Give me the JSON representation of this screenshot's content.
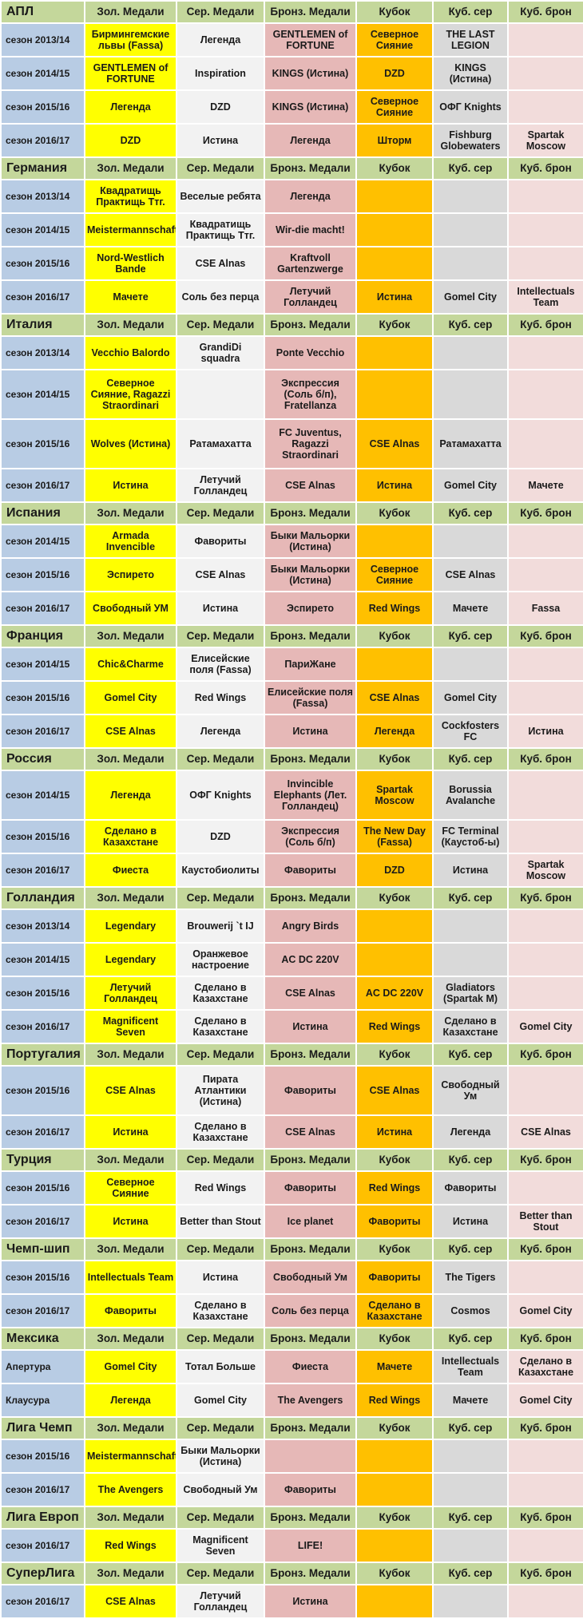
{
  "columns": [
    "Зол. Медали",
    "Сер. Медали",
    "Бронз. Медали",
    "Кубок",
    "Куб. сер",
    "Куб. брон"
  ],
  "sections": [
    {
      "name": "АПЛ",
      "rows": [
        {
          "h": 40,
          "season": "сезон 2013/14",
          "cells": [
            "Бирмингемские львы (Fassa)",
            "Легенда",
            "GENTLEMEN of FORTUNE",
            "Северное Сияние",
            "THE LAST LEGION",
            ""
          ]
        },
        {
          "h": 40,
          "season": "сезон 2014/15",
          "cells": [
            "GENTLEMEN of FORTUNE",
            "Inspiration",
            "KINGS (Истина)",
            "DZD",
            "KINGS (Истина)",
            ""
          ]
        },
        {
          "h": 40,
          "season": "сезон 2015/16",
          "cells": [
            "Легенда",
            "DZD",
            "KINGS (Истина)",
            "Северное Сияние",
            "ОФГ Knights",
            ""
          ]
        },
        {
          "h": 40,
          "season": "сезон 2016/17",
          "cells": [
            "DZD",
            "Истина",
            "Легенда",
            "Шторм",
            "Fishburg Globewaters",
            "Spartak Moscow"
          ]
        }
      ]
    },
    {
      "name": "Германия",
      "rows": [
        {
          "h": 40,
          "season": "сезон 2013/14",
          "cells": [
            "Квадратищь Практищь Ттг.",
            "Веселые ребята",
            "Легенда",
            "",
            "",
            ""
          ]
        },
        {
          "h": 40,
          "season": "сезон 2014/15",
          "cells": [
            "Meistermannschaft",
            "Квадратищь Практищь Ттг.",
            "Wir-die macht!",
            "",
            "",
            ""
          ]
        },
        {
          "h": 40,
          "season": "сезон 2015/16",
          "cells": [
            "Nord-Westlich Bande",
            "CSE Alnas",
            "Kraftvoll Gartenzwerge",
            "",
            "",
            ""
          ]
        },
        {
          "h": 40,
          "season": "сезон 2016/17",
          "cells": [
            "Мачете",
            "Соль без перца",
            "Летучий Голландец",
            "Истина",
            "Gomel City",
            "Intellectuals Team"
          ]
        }
      ]
    },
    {
      "name": "Италия",
      "rows": [
        {
          "h": 40,
          "season": "сезон 2013/14",
          "cells": [
            "Vecchio Balordo",
            "GrandiDi squadra",
            "Ponte Vecchio",
            "",
            "",
            ""
          ]
        },
        {
          "h": 60,
          "season": "сезон 2014/15",
          "cells": [
            "Северное Сияние, Ragazzi Straordinari",
            "",
            "Экспрессия (Соль б/п), Fratellanza",
            "",
            "",
            ""
          ]
        },
        {
          "h": 60,
          "season": "сезон 2015/16",
          "cells": [
            "Wolves (Истина)",
            "Ратамахатта",
            "FC Juventus, Ragazzi Straordinari",
            "CSE Alnas",
            "Ратамахатта",
            ""
          ]
        },
        {
          "h": 40,
          "season": "сезон 2016/17",
          "cells": [
            "Истина",
            "Летучий Голландец",
            "CSE Alnas",
            "Истина",
            "Gomel City",
            "Мачете"
          ]
        }
      ]
    },
    {
      "name": "Испания",
      "rows": [
        {
          "h": 40,
          "season": "сезон 2014/15",
          "cells": [
            "Armada Invencible",
            "Фавориты",
            "Быки Мальорки (Истина)",
            "",
            "",
            ""
          ]
        },
        {
          "h": 40,
          "season": "сезон 2015/16",
          "cells": [
            "Эспирето",
            "CSE Alnas",
            "Быки Мальорки (Истина)",
            "Северное Сияние",
            "CSE Alnas",
            ""
          ]
        },
        {
          "h": 40,
          "season": "сезон 2016/17",
          "cells": [
            "Свободный УМ",
            "Истина",
            "Эспирето",
            "Red Wings",
            "Мачете",
            "Fassa"
          ]
        }
      ]
    },
    {
      "name": "Франция",
      "rows": [
        {
          "h": 40,
          "season": "сезон 2014/15",
          "cells": [
            "Chic&Charme",
            "Елисейские поля (Fassa)",
            "ПариЖане",
            "",
            "",
            ""
          ]
        },
        {
          "h": 40,
          "season": "сезон 2015/16",
          "cells": [
            "Gomel City",
            "Red Wings",
            "Елисейские поля (Fassa)",
            "CSE Alnas",
            "Gomel City",
            ""
          ]
        },
        {
          "h": 40,
          "season": "сезон 2016/17",
          "cells": [
            "CSE Alnas",
            "Легенда",
            "Истина",
            "Легенда",
            "Cockfosters FC",
            "Истина"
          ]
        }
      ]
    },
    {
      "name": "Россия",
      "rows": [
        {
          "h": 60,
          "season": "сезон 2014/15",
          "cells": [
            "Легенда",
            "ОФГ Knights",
            "Invincible Elephants (Лет. Голландец)",
            "Spartak Moscow",
            "Borussia Avalanche",
            ""
          ]
        },
        {
          "h": 40,
          "season": "сезон 2015/16",
          "cells": [
            "Сделано в Казахстане",
            "DZD",
            "Экспрессия (Соль б/п)",
            "The New Day (Fassa)",
            "FC Terminal (Каустоб-ы)",
            ""
          ]
        },
        {
          "h": 40,
          "season": "сезон 2016/17",
          "cells": [
            "Фиеста",
            "Каустобиолиты",
            "Фавориты",
            "DZD",
            "Истина",
            "Spartak Moscow"
          ]
        }
      ]
    },
    {
      "name": "Голландия",
      "rows": [
        {
          "h": 40,
          "season": "сезон 2013/14",
          "cells": [
            "Legendary",
            "Brouwerij `t IJ",
            "Angry Birds",
            "",
            "",
            ""
          ]
        },
        {
          "h": 40,
          "season": "сезон 2014/15",
          "cells": [
            "Legendary",
            "Оранжевое настроение",
            "AC DC 220V",
            "",
            "",
            ""
          ]
        },
        {
          "h": 40,
          "season": "сезон 2015/16",
          "cells": [
            "Летучий Голландец",
            "Сделано в Казахстане",
            "CSE Alnas",
            "AC DC 220V",
            "Gladiators (Spartak M)",
            ""
          ]
        },
        {
          "h": 40,
          "season": "сезон 2016/17",
          "cells": [
            "Magnificent Seven",
            "Сделано в Казахстане",
            "Истина",
            "Red Wings",
            "Сделано в Казахстане",
            "Gomel City"
          ]
        }
      ]
    },
    {
      "name": "Португалия",
      "rows": [
        {
          "h": 60,
          "season": "сезон 2015/16",
          "cells": [
            "CSE Alnas",
            "Пирата Атлантики (Истина)",
            "Фавориты",
            "CSE Alnas",
            "Свободный Ум",
            ""
          ]
        },
        {
          "h": 40,
          "season": "сезон 2016/17",
          "cells": [
            "Истина",
            "Сделано в Казахстане",
            "CSE Alnas",
            "Истина",
            "Легенда",
            "CSE Alnas"
          ]
        }
      ]
    },
    {
      "name": "Турция",
      "rows": [
        {
          "h": 40,
          "season": "сезон 2015/16",
          "cells": [
            "Северное Сияние",
            "Red Wings",
            "Фавориты",
            "Red Wings",
            "Фавориты",
            ""
          ]
        },
        {
          "h": 40,
          "season": "сезон 2016/17",
          "cells": [
            "Истина",
            "Better than Stout",
            "Ice planet",
            "Фавориты",
            "Истина",
            "Better than Stout"
          ]
        }
      ]
    },
    {
      "name": "Чемп-шип",
      "rows": [
        {
          "h": 40,
          "season": "сезон 2015/16",
          "cells": [
            "Intellectuals Team",
            "Истина",
            "Свободный Ум",
            "Фавориты",
            "The Tigers",
            ""
          ]
        },
        {
          "h": 40,
          "season": "сезон 2016/17",
          "cells": [
            "Фавориты",
            "Сделано в Казахстане",
            "Соль без перца",
            "Сделано в Казахстане",
            "Cosmos",
            "Gomel City"
          ]
        }
      ]
    },
    {
      "name": "Мексика",
      "rows": [
        {
          "h": 40,
          "season": "Апертура",
          "cells": [
            "Gomel City",
            "Тотал Больше",
            "Фиеста",
            "Мачете",
            "Intellectuals Team",
            "Сделано в Казахстане"
          ]
        },
        {
          "h": 40,
          "season": "Клаусура",
          "cells": [
            "Легенда",
            "Gomel City",
            "The Avengers",
            "Red Wings",
            "Мачете",
            "Gomel City"
          ]
        }
      ]
    },
    {
      "name": "Лига Чемп",
      "rows": [
        {
          "h": 40,
          "season": "сезон 2015/16",
          "cells": [
            "Meistermannschaft",
            "Быки Мальорки (Истина)",
            "",
            "",
            "",
            ""
          ]
        },
        {
          "h": 40,
          "season": "сезон 2016/17",
          "cells": [
            "The Avengers",
            "Свободный Ум",
            "Фавориты",
            "",
            "",
            ""
          ]
        }
      ]
    },
    {
      "name": "Лига Европ",
      "rows": [
        {
          "h": 40,
          "season": "сезон 2016/17",
          "cells": [
            "Red Wings",
            "Magnificent Seven",
            "LIFE!",
            "",
            "",
            ""
          ]
        }
      ]
    },
    {
      "name": "СуперЛига",
      "rows": [
        {
          "h": 40,
          "season": "сезон 2016/17",
          "cells": [
            "CSE Alnas",
            "Летучий Голландец",
            "Истина",
            "",
            "",
            ""
          ]
        }
      ]
    }
  ]
}
